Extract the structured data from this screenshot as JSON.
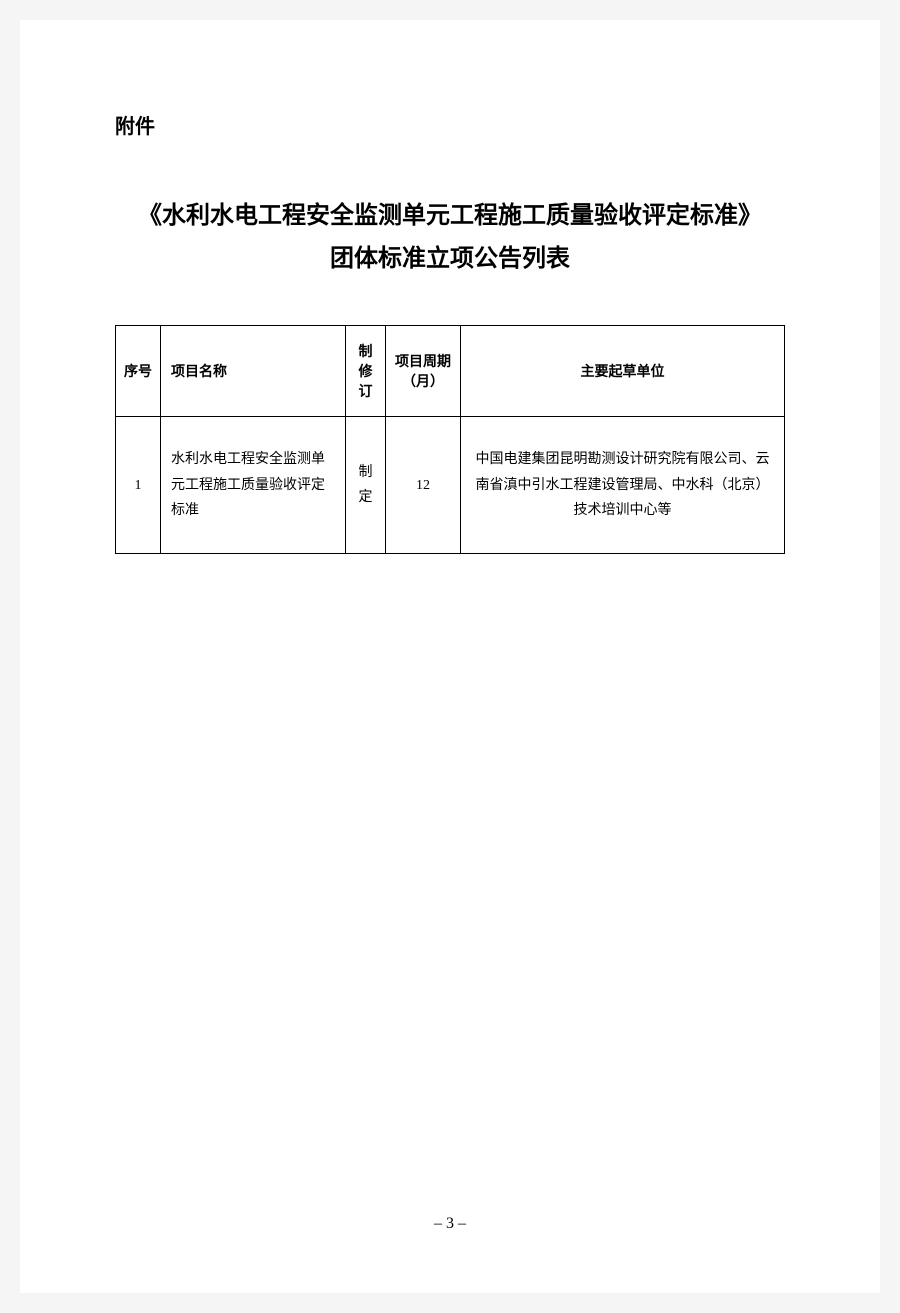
{
  "attachment_label": "附件",
  "title": "《水利水电工程安全监测单元工程施工质量验收评定标准》团体标准立项公告列表",
  "table": {
    "columns": [
      {
        "label": "序号",
        "class": "col-seq"
      },
      {
        "label": "项目名称",
        "class": "col-name"
      },
      {
        "label": "制修订",
        "class": "col-revision"
      },
      {
        "label": "项目周期（月）",
        "class": "col-period"
      },
      {
        "label": "主要起草单位",
        "class": "col-org"
      }
    ],
    "rows": [
      {
        "seq": "1",
        "name": "水利水电工程安全监测单元工程施工质量验收评定标准",
        "revision": "制定",
        "period": "12",
        "org": "中国电建集团昆明勘测设计研究院有限公司、云南省滇中引水工程建设管理局、中水科（北京）技术培训中心等"
      }
    ]
  },
  "page_number": "– 3 –"
}
